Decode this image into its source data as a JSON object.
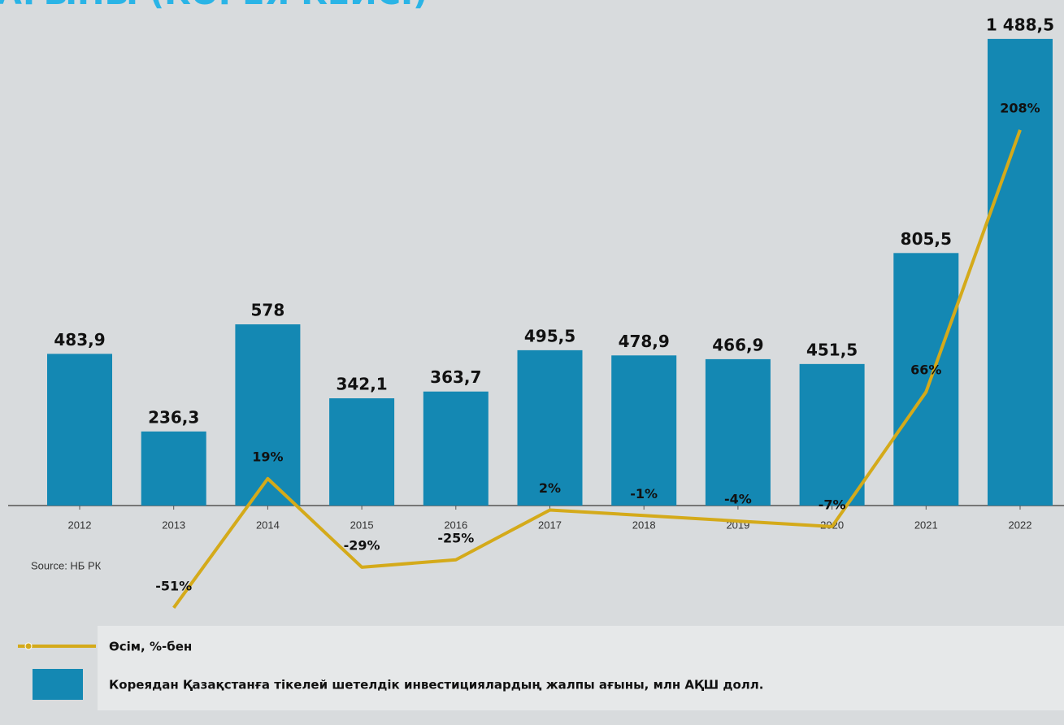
{
  "chart_data": {
    "type": "bar",
    "title": "АҒЫНЫ (КОРЕЯ КЕЙСІ)",
    "source": "Source: НБ РК",
    "categories": [
      "2012",
      "2013",
      "2014",
      "2015",
      "2016",
      "2017",
      "2018",
      "2019",
      "2020",
      "2021",
      "2022"
    ],
    "series": [
      {
        "name": "Кореядан Қазақстанға тікелей шетелдік инвестициялардың жалпы ағыны, млн АҚШ долл.",
        "type": "bar",
        "color": "#1488b3",
        "values": [
          483.9,
          236.3,
          578,
          342.1,
          363.7,
          495.5,
          478.9,
          466.9,
          451.5,
          805.5,
          1488.5
        ],
        "value_labels": [
          "483,9",
          "236,3",
          "578",
          "342,1",
          "363,7",
          "495,5",
          "478,9",
          "466,9",
          "451,5",
          "805,5",
          "1 488,5"
        ]
      },
      {
        "name": "Өсім, %-бен",
        "type": "line",
        "axis": "y2",
        "color": "#d4aa1a",
        "values": [
          null,
          -51,
          19,
          -29,
          -25,
          2,
          -1,
          -4,
          -7,
          66,
          208
        ],
        "value_labels": [
          null,
          "-51%",
          "19%",
          "-29%",
          "-25%",
          "2%",
          "-1%",
          "-4%",
          "-7%",
          "66%",
          "208%"
        ]
      }
    ]
  }
}
